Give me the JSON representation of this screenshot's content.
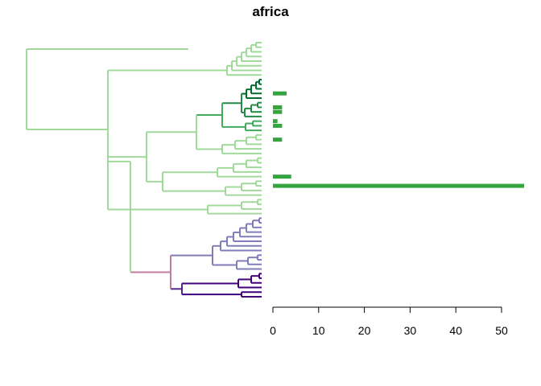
{
  "chart_data": {
    "type": "bar",
    "title": "africa",
    "xlabel": "",
    "ylabel": "",
    "xlim": [
      0,
      55
    ],
    "xticks": [
      0,
      10,
      20,
      30,
      40,
      50
    ],
    "orientation": "horizontal",
    "grid": false,
    "legend": "none",
    "dendrogram": {
      "leaf_count": 56,
      "clade_colors": [
        "#a1d99b",
        "#41ab5d",
        "#238b45",
        "#006d2c",
        "#807dba",
        "#54278f",
        "#3f007d",
        "#c27ba0"
      ]
    },
    "bars": [
      {
        "leaf": 11,
        "value": 3.0
      },
      {
        "leaf": 14,
        "value": 2.0
      },
      {
        "leaf": 15,
        "value": 2.0
      },
      {
        "leaf": 17,
        "value": 1.0
      },
      {
        "leaf": 18,
        "value": 2.0
      },
      {
        "leaf": 21,
        "value": 2.0
      },
      {
        "leaf": 29,
        "value": 4.0
      },
      {
        "leaf": 31,
        "value": 55.0
      }
    ],
    "bar_color": "#34a43f"
  }
}
